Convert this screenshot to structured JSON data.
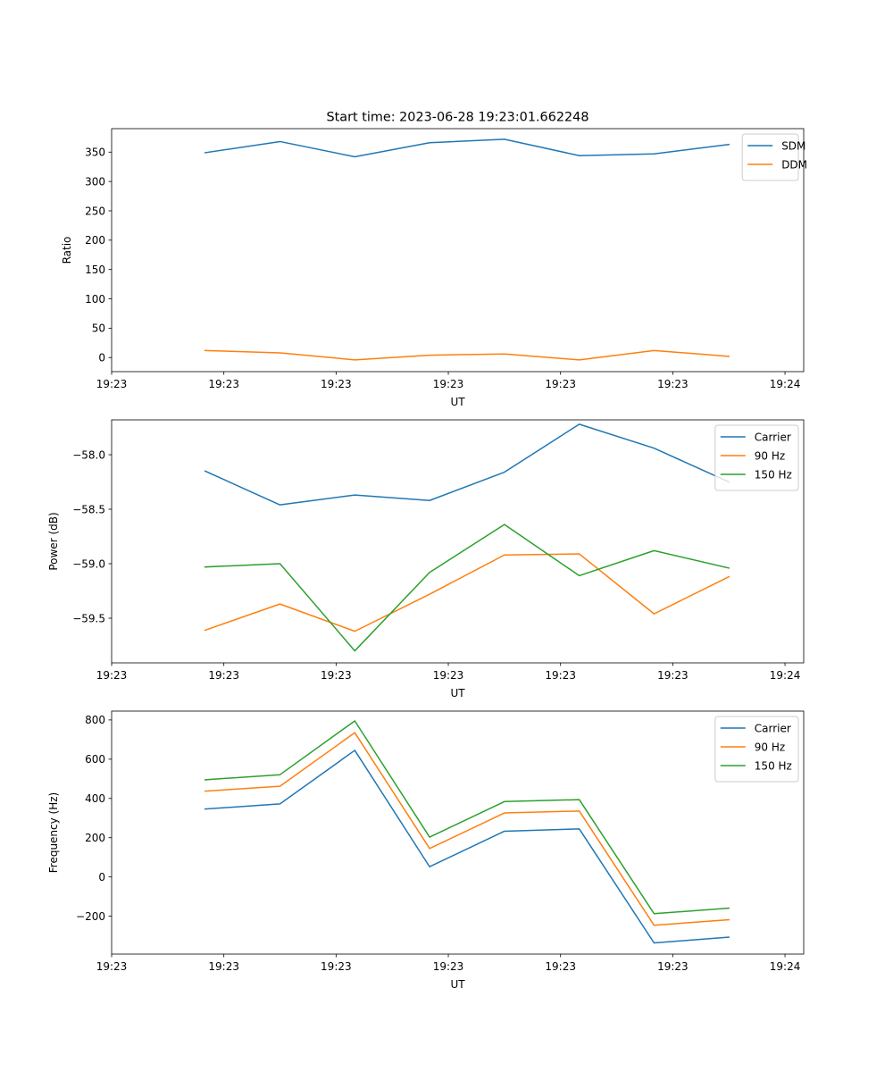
{
  "figure": {
    "title": "Start time: 2023-06-28 19:23:01.662248"
  },
  "chart_data": [
    {
      "type": "line",
      "xlabel": "UT",
      "ylabel": "Ratio",
      "xlim": [
        -1,
        17.5
      ],
      "ylim": [
        -24,
        390
      ],
      "x": [
        1.5,
        3.5,
        5.5,
        7.5,
        9.5,
        11.5,
        13.5,
        15.5
      ],
      "xtick_values": [
        -1,
        2,
        5,
        8,
        11,
        14,
        17
      ],
      "xtick_labels": [
        "19:23",
        "19:23",
        "19:23",
        "19:23",
        "19:23",
        "19:23",
        "19:24"
      ],
      "yticks": [
        0,
        50,
        100,
        150,
        200,
        250,
        300,
        350
      ],
      "ytick_labels": [
        "0",
        "50",
        "100",
        "150",
        "200",
        "250",
        "300",
        "350"
      ],
      "legend_position": "top-right",
      "series": [
        {
          "name": "SDM",
          "color": "#1f77b4",
          "values": [
            349,
            368,
            342,
            366,
            372,
            344,
            347,
            363
          ]
        },
        {
          "name": "DDM",
          "color": "#ff7f0e",
          "values": [
            12,
            8,
            -4,
            4,
            6,
            -4,
            12,
            2
          ]
        }
      ]
    },
    {
      "type": "line",
      "xlabel": "UT",
      "ylabel": "Power (dB)",
      "xlim": [
        -1,
        17.5
      ],
      "ylim": [
        -59.91,
        -57.68
      ],
      "x": [
        1.5,
        3.5,
        5.5,
        7.5,
        9.5,
        11.5,
        13.5,
        15.5
      ],
      "xtick_values": [
        -1,
        2,
        5,
        8,
        11,
        14,
        17
      ],
      "xtick_labels": [
        "19:23",
        "19:23",
        "19:23",
        "19:23",
        "19:23",
        "19:23",
        "19:24"
      ],
      "yticks": [
        -59.5,
        -59.0,
        -58.5,
        -58.0
      ],
      "ytick_labels": [
        "−59.5",
        "−59.0",
        "−58.5",
        "−58.0"
      ],
      "legend_position": "top-right",
      "series": [
        {
          "name": "Carrier",
          "color": "#1f77b4",
          "values": [
            -58.15,
            -58.46,
            -58.37,
            -58.42,
            -58.16,
            -57.72,
            -57.94,
            -58.25
          ]
        },
        {
          "name": "90 Hz",
          "color": "#ff7f0e",
          "values": [
            -59.61,
            -59.37,
            -59.62,
            -59.28,
            -58.92,
            -58.91,
            -59.46,
            -59.12
          ]
        },
        {
          "name": "150 Hz",
          "color": "#2ca02c",
          "values": [
            -59.03,
            -59.0,
            -59.8,
            -59.08,
            -58.64,
            -59.11,
            -58.88,
            -59.04
          ]
        }
      ]
    },
    {
      "type": "line",
      "xlabel": "UT",
      "ylabel": "Frequency (Hz)",
      "xlim": [
        -1,
        17.5
      ],
      "ylim": [
        -393,
        845
      ],
      "x": [
        1.5,
        3.5,
        5.5,
        7.5,
        9.5,
        11.5,
        13.5,
        15.5
      ],
      "xtick_values": [
        -1,
        2,
        5,
        8,
        11,
        14,
        17
      ],
      "xtick_labels": [
        "19:23",
        "19:23",
        "19:23",
        "19:23",
        "19:23",
        "19:23",
        "19:24"
      ],
      "yticks": [
        -200,
        0,
        200,
        400,
        600,
        800
      ],
      "ytick_labels": [
        "−200",
        "0",
        "200",
        "400",
        "600",
        "800"
      ],
      "legend_position": "top-right",
      "series": [
        {
          "name": "Carrier",
          "color": "#1f77b4",
          "values": [
            346,
            372,
            645,
            52,
            233,
            245,
            -336,
            -307
          ]
        },
        {
          "name": "90 Hz",
          "color": "#ff7f0e",
          "values": [
            437,
            462,
            735,
            145,
            326,
            336,
            -246,
            -218
          ]
        },
        {
          "name": "150 Hz",
          "color": "#2ca02c",
          "values": [
            495,
            521,
            795,
            203,
            384,
            394,
            -187,
            -159
          ]
        }
      ]
    }
  ]
}
